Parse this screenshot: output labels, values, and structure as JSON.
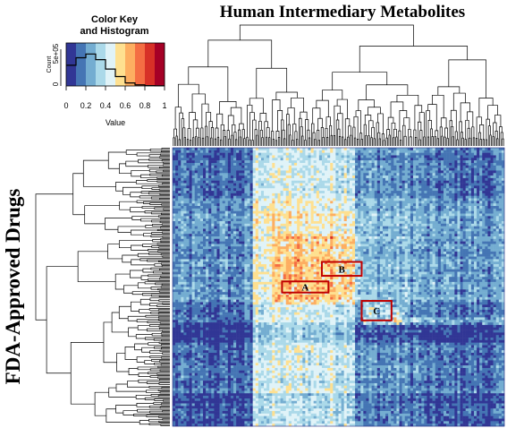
{
  "chart_data": {
    "type": "heatmap",
    "title": "Human Intermediary Metabolites",
    "ylabel": "FDA-Approved Drugs",
    "color_key": {
      "title_line1": "Color Key",
      "title_line2": "and Histogram",
      "xlabel": "Value",
      "ylabel": "Count",
      "y_tick_label": "5e+05",
      "y_zero_label": "0",
      "range": [
        0,
        1
      ],
      "ticks": [
        "0",
        "0.2",
        "0.4",
        "0.6",
        "0.8",
        "1"
      ],
      "colors": [
        "#313695",
        "#4575b4",
        "#74add1",
        "#abd9e9",
        "#e0f3f8",
        "#fee090",
        "#fdae61",
        "#f46d43",
        "#d73027",
        "#a50026"
      ],
      "histogram_counts": [
        0.55,
        0.75,
        0.85,
        0.7,
        0.45,
        0.25,
        0.08,
        0.03,
        0.01,
        0.005
      ]
    },
    "regions": [
      {
        "label": "A",
        "x": [
          0.33,
          0.47
        ],
        "y": [
          0.48,
          0.52
        ]
      },
      {
        "label": "B",
        "x": [
          0.45,
          0.57
        ],
        "y": [
          0.41,
          0.46
        ]
      },
      {
        "label": "C",
        "x": [
          0.57,
          0.66
        ],
        "y": [
          0.55,
          0.62
        ]
      }
    ],
    "dendrograms": {
      "columns": true,
      "rows": true
    },
    "legend": "top-left"
  }
}
